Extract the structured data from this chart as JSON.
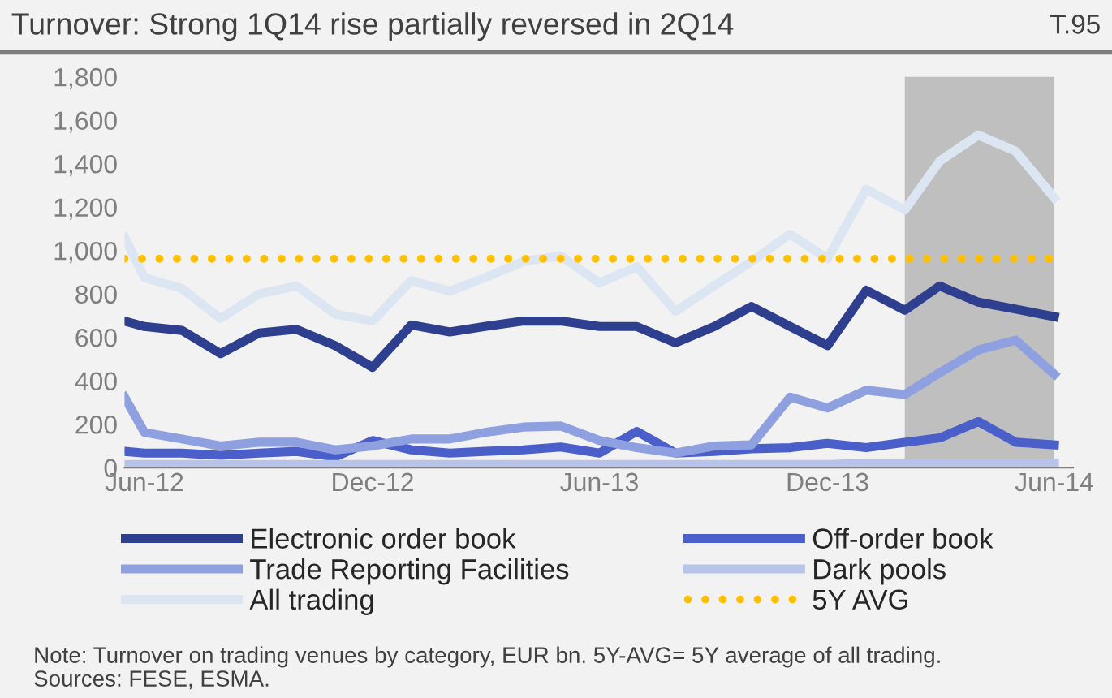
{
  "chart_data": {
    "type": "line",
    "title": "Turnover: Strong 1Q14 rise partially reversed in 2Q14",
    "annotations": [
      "T.95",
      "Note: Turnover on trading venues by category, EUR bn. 5Y-AVG= 5Y average of all trading.\nSources: FESE, ESMA."
    ],
    "x": [
      "2012-05-16",
      "2012-06",
      "2012-07",
      "2012-08",
      "2012-09",
      "2012-10",
      "2012-11",
      "2012-12",
      "2013-01",
      "2013-02",
      "2013-03",
      "2013-04",
      "2013-05",
      "2013-06",
      "2013-07",
      "2013-08",
      "2013-09",
      "2013-10",
      "2013-11",
      "2013-12",
      "2014-01",
      "2014-02",
      "2014-03",
      "2014-04",
      "2014-05",
      "2014-06"
    ],
    "series": [
      {
        "name": "Electronic order book",
        "color": "#2e3f8f",
        "values": [
          675,
          650,
          632,
          525,
          620,
          637,
          562,
          462,
          657,
          625,
          650,
          675,
          675,
          650,
          650,
          575,
          650,
          742,
          650,
          562,
          817,
          725,
          837,
          762,
          730,
          695
        ]
      },
      {
        "name": "Off-order book",
        "color": "#4a5fc9",
        "values": [
          75,
          67,
          67,
          57,
          67,
          75,
          50,
          125,
          82,
          67,
          75,
          82,
          95,
          67,
          167,
          67,
          75,
          87,
          92,
          112,
          92,
          117,
          137,
          212,
          117,
          105
        ]
      },
      {
        "name": "Trade Reporting Facilities",
        "color": "#8ea0e0",
        "values": [
          325,
          162,
          132,
          100,
          117,
          117,
          82,
          100,
          132,
          132,
          162,
          187,
          192,
          125,
          92,
          67,
          100,
          105,
          325,
          275,
          357,
          337,
          437,
          542,
          587,
          430
        ]
      },
      {
        "name": "Dark pools",
        "color": "#b8c3ea",
        "values": [
          15,
          15,
          15,
          15,
          15,
          15,
          15,
          15,
          15,
          15,
          15,
          15,
          15,
          15,
          15,
          15,
          15,
          15,
          15,
          15,
          20,
          20,
          20,
          20,
          20,
          20
        ]
      },
      {
        "name": "All trading",
        "color": "#dce6f2",
        "values": [
          1062,
          875,
          825,
          687,
          800,
          837,
          707,
          675,
          862,
          812,
          875,
          950,
          975,
          850,
          925,
          720,
          837,
          950,
          1075,
          962,
          1282,
          1187,
          1412,
          1532,
          1457,
          1242
        ]
      },
      {
        "name": "5Y AVG",
        "color": "#ffc000",
        "line_style": "dotted",
        "values": [
          962,
          962,
          962,
          962,
          962,
          962,
          962,
          962,
          962,
          962,
          962,
          962,
          962,
          962,
          962,
          962,
          962,
          962,
          962,
          962,
          962,
          962,
          962,
          962,
          962,
          962
        ]
      }
    ],
    "bands": [
      {
        "axis": "x",
        "from": "2014-02",
        "to": "2014-06",
        "color": "#bfbfbf"
      }
    ],
    "xlim": [
      "2012-05-16",
      "2014-06-16"
    ],
    "xticks": [
      {
        "value": "2012-06",
        "label": "Jun-12"
      },
      {
        "value": "2012-12",
        "label": "Dec-12"
      },
      {
        "value": "2013-06",
        "label": "Jun-13"
      },
      {
        "value": "2013-12",
        "label": "Dec-13"
      },
      {
        "value": "2014-06",
        "label": "Jun-14"
      }
    ],
    "ylim": [
      0,
      1800
    ],
    "yticks": [
      0,
      200,
      400,
      600,
      800,
      {
        "value": 1000,
        "label": "1,000"
      },
      {
        "value": 1200,
        "label": "1,200"
      },
      {
        "value": 1400,
        "label": "1,400"
      },
      {
        "value": 1600,
        "label": "1,600"
      },
      {
        "value": 1800,
        "label": "1,800"
      }
    ],
    "grid": false,
    "legend": "bottom",
    "line_style": "solid",
    "marker": "none"
  }
}
